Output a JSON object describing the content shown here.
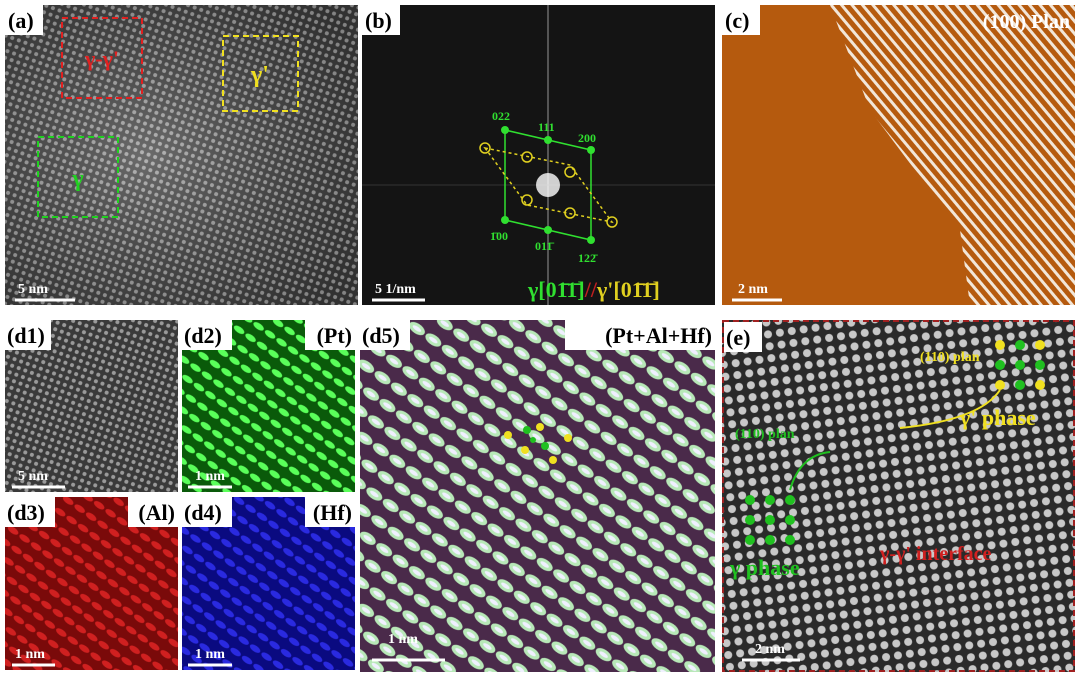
{
  "panels": {
    "a": {
      "label": "(a)",
      "boxes": [
        "γ-γ'",
        "γ'",
        "γ"
      ],
      "scale": "5 nm"
    },
    "b": {
      "label": "(b)",
      "spots": [
        "022",
        "111",
        "200",
        "1̄00",
        "011̄",
        "122̄"
      ],
      "scale": "5 1/nm",
      "zone_gamma": "γ[01̄1̄]",
      "zone_sep": "//",
      "zone_gamma_prime": "γ'[01̄1̄]"
    },
    "c": {
      "label": "(c)",
      "title": "(100) Plan",
      "scale": "2 nm"
    },
    "d1": {
      "label": "(d1)",
      "scale": "5 nm"
    },
    "d2": {
      "label": "(d2)",
      "element": "(Pt)",
      "scale": "1 nm"
    },
    "d3": {
      "label": "(d3)",
      "element": "(Al)",
      "scale": "1 nm"
    },
    "d4": {
      "label": "(d4)",
      "element": "(Hf)",
      "scale": "1 nm"
    },
    "d5": {
      "label": "(d5)",
      "element": "(Pt+Al+Hf)",
      "scale": "1 nm"
    },
    "e": {
      "label": "(e)",
      "plan_prime": "(110) plan",
      "plan_gamma": "(110) plan",
      "phase_prime": "γ' phase",
      "phase_gamma": "γ phase",
      "interface": "γ-γ' interface",
      "scale": "2 nm"
    }
  }
}
